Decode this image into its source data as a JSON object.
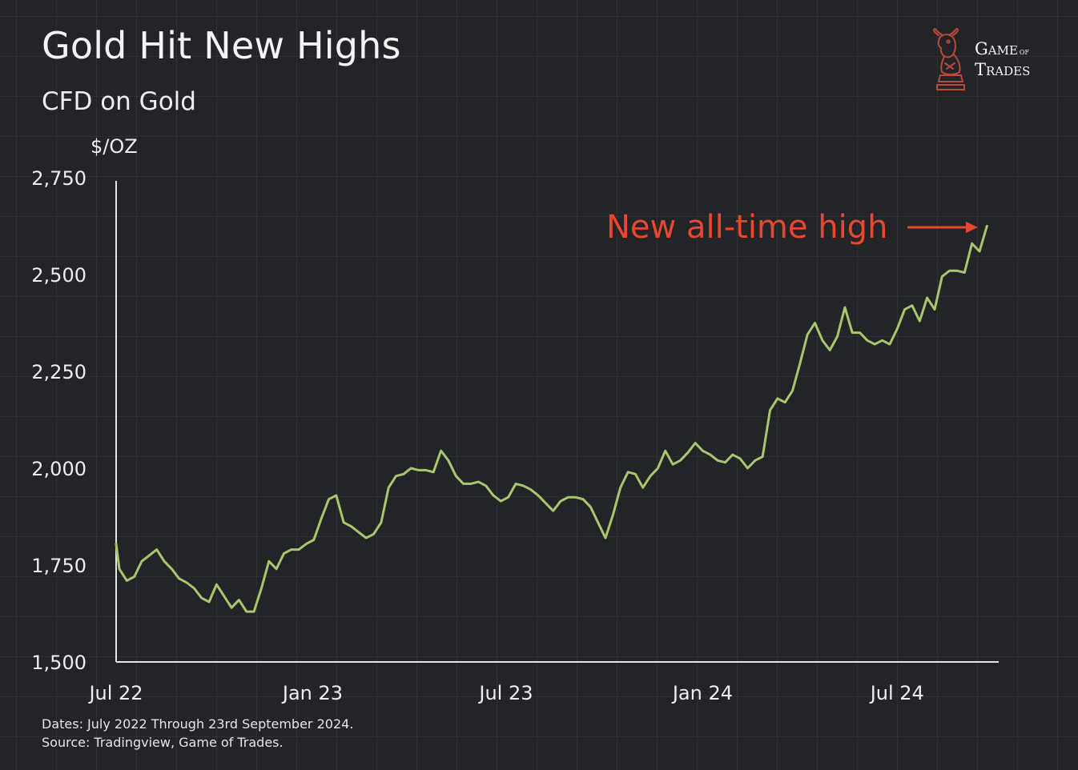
{
  "header": {
    "title": "Gold Hit New Highs",
    "subtitle": "CFD on Gold"
  },
  "logo": {
    "line1_big": "Game",
    "line1_small": "of",
    "line2": "Trades",
    "icon": "knight-bull-icon",
    "icon_color": "#b8493b"
  },
  "colors": {
    "background": "#222428",
    "line": "#a8c66c",
    "annotation": "#e8472f",
    "axis": "#e6e6e6"
  },
  "chart_data": {
    "type": "line",
    "title": "Gold Hit New Highs",
    "subtitle": "CFD on Gold",
    "ylabel": "$/OZ",
    "xlabel": "",
    "ylim": [
      1500,
      2750
    ],
    "yticks": [
      1500,
      1750,
      2000,
      2250,
      2500,
      2750
    ],
    "ytick_labels": [
      "1,500",
      "1,750",
      "2,000",
      "2,250",
      "2,500",
      "2,750"
    ],
    "xlim": [
      "2022-07-01",
      "2024-10-04"
    ],
    "xticks": [
      {
        "date": "2022-07-01",
        "label": "Jul 22"
      },
      {
        "date": "2023-01-01",
        "label": "Jan 23"
      },
      {
        "date": "2023-07-01",
        "label": "Jul 23"
      },
      {
        "date": "2024-01-01",
        "label": "Jan 24"
      },
      {
        "date": "2024-07-01",
        "label": "Jul 24"
      }
    ],
    "grid": true,
    "legend": "none",
    "series": [
      {
        "x": [
          "2022-07-01",
          "2022-07-04",
          "2022-07-11",
          "2022-07-18",
          "2022-07-25",
          "2022-08-01",
          "2022-08-08",
          "2022-08-15",
          "2022-08-22",
          "2022-08-29",
          "2022-09-05",
          "2022-09-12",
          "2022-09-19",
          "2022-09-26",
          "2022-10-03",
          "2022-10-10",
          "2022-10-17",
          "2022-10-24",
          "2022-10-31",
          "2022-11-07",
          "2022-11-14",
          "2022-11-21",
          "2022-11-28",
          "2022-12-05",
          "2022-12-12",
          "2022-12-19",
          "2022-12-26",
          "2023-01-02",
          "2023-01-09",
          "2023-01-16",
          "2023-01-23",
          "2023-01-30",
          "2023-02-06",
          "2023-02-13",
          "2023-02-20",
          "2023-02-27",
          "2023-03-06",
          "2023-03-13",
          "2023-03-20",
          "2023-03-27",
          "2023-04-03",
          "2023-04-10",
          "2023-04-17",
          "2023-04-24",
          "2023-05-01",
          "2023-05-08",
          "2023-05-15",
          "2023-05-22",
          "2023-05-29",
          "2023-06-05",
          "2023-06-12",
          "2023-06-19",
          "2023-06-26",
          "2023-07-03",
          "2023-07-10",
          "2023-07-17",
          "2023-07-24",
          "2023-07-31",
          "2023-08-07",
          "2023-08-14",
          "2023-08-21",
          "2023-08-28",
          "2023-09-04",
          "2023-09-11",
          "2023-09-18",
          "2023-09-25",
          "2023-10-02",
          "2023-10-09",
          "2023-10-16",
          "2023-10-23",
          "2023-10-30",
          "2023-11-06",
          "2023-11-13",
          "2023-11-20",
          "2023-11-27",
          "2023-12-04",
          "2023-12-11",
          "2023-12-18",
          "2023-12-25",
          "2024-01-01",
          "2024-01-08",
          "2024-01-15",
          "2024-01-22",
          "2024-01-29",
          "2024-02-05",
          "2024-02-12",
          "2024-02-19",
          "2024-02-26",
          "2024-03-04",
          "2024-03-11",
          "2024-03-18",
          "2024-03-25",
          "2024-04-01",
          "2024-04-08",
          "2024-04-15",
          "2024-04-22",
          "2024-04-29",
          "2024-05-06",
          "2024-05-13",
          "2024-05-20",
          "2024-05-27",
          "2024-06-03",
          "2024-06-10",
          "2024-06-17",
          "2024-06-24",
          "2024-07-01",
          "2024-07-08",
          "2024-07-15",
          "2024-07-22",
          "2024-07-29",
          "2024-08-05",
          "2024-08-12",
          "2024-08-19",
          "2024-08-26",
          "2024-09-02",
          "2024-09-09",
          "2024-09-16",
          "2024-09-23"
        ],
        "values": [
          1805,
          1740,
          1710,
          1720,
          1760,
          1775,
          1790,
          1760,
          1740,
          1715,
          1705,
          1690,
          1665,
          1655,
          1700,
          1670,
          1640,
          1660,
          1630,
          1630,
          1690,
          1760,
          1740,
          1780,
          1790,
          1790,
          1805,
          1815,
          1870,
          1920,
          1930,
          1860,
          1850,
          1835,
          1820,
          1830,
          1860,
          1950,
          1980,
          1985,
          2000,
          1995,
          1995,
          1990,
          2045,
          2020,
          1980,
          1960,
          1960,
          1965,
          1955,
          1930,
          1915,
          1925,
          1960,
          1955,
          1945,
          1930,
          1910,
          1890,
          1915,
          1925,
          1925,
          1920,
          1900,
          1860,
          1820,
          1880,
          1950,
          1990,
          1985,
          1950,
          1980,
          2000,
          2045,
          2010,
          2020,
          2040,
          2065,
          2045,
          2035,
          2020,
          2015,
          2035,
          2025,
          2000,
          2020,
          2030,
          2150,
          2180,
          2170,
          2200,
          2270,
          2345,
          2375,
          2330,
          2305,
          2340,
          2415,
          2350,
          2350,
          2330,
          2320,
          2330,
          2320,
          2360,
          2410,
          2420,
          2380,
          2440,
          2410,
          2495,
          2510,
          2510,
          2505,
          2580,
          2560,
          2625
        ]
      }
    ],
    "annotations": [
      {
        "text": "New all-time high",
        "arrow": "right",
        "target": "last-point",
        "color": "#e8472f"
      }
    ]
  },
  "footer": {
    "dates_note": "Dates: July 2022 Through 23rd September 2024.",
    "source_note": "Source: Tradingview, Game of Trades."
  }
}
